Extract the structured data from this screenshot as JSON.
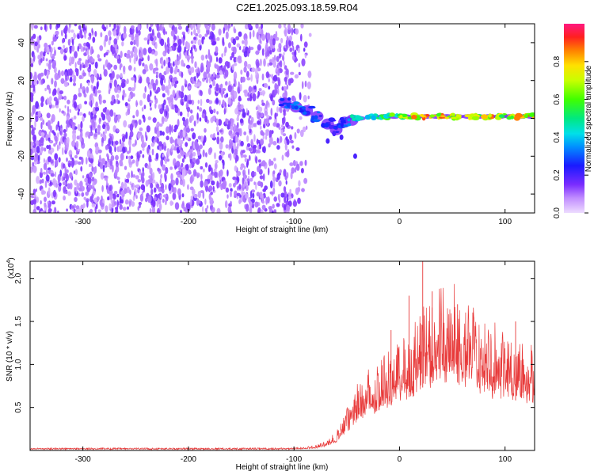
{
  "title": "C2E1.2025.093.18.59.R04",
  "chart_data": [
    {
      "type": "heatmap",
      "id": "spectrogram",
      "xlabel": "Height of straight line (km)",
      "ylabel": "Frequency (Hz)",
      "xlim": [
        -350,
        128
      ],
      "ylim": [
        -50,
        50
      ],
      "xticks": [
        -300,
        -200,
        -100,
        0,
        100
      ],
      "yticks": [
        -40,
        -20,
        0,
        20,
        40
      ],
      "colorbar": {
        "label": "Normalized spectral amplitude",
        "range": [
          0,
          1
        ],
        "ticks": [
          0.0,
          0.2,
          0.4,
          0.6,
          0.8
        ]
      },
      "noise_region_x": [
        -350,
        -90
      ],
      "signal_ridge": [
        {
          "x": -108,
          "y": 8,
          "amp": 0.3
        },
        {
          "x": -98,
          "y": 6,
          "amp": 0.35
        },
        {
          "x": -88,
          "y": 4,
          "amp": 0.3
        },
        {
          "x": -78,
          "y": 1,
          "amp": 0.3
        },
        {
          "x": -68,
          "y": -3,
          "amp": 0.25
        },
        {
          "x": -60,
          "y": -6,
          "amp": 0.25
        },
        {
          "x": -52,
          "y": -2,
          "amp": 0.3
        },
        {
          "x": -45,
          "y": -1,
          "amp": 0.45
        },
        {
          "x": -38,
          "y": 0,
          "amp": 0.45
        },
        {
          "x": -25,
          "y": 1,
          "amp": 0.5
        },
        {
          "x": -15,
          "y": 1,
          "amp": 0.55
        },
        {
          "x": -5,
          "y": 1,
          "amp": 0.6
        },
        {
          "x": 5,
          "y": 1,
          "amp": 0.7
        },
        {
          "x": 15,
          "y": 1,
          "amp": 0.8
        },
        {
          "x": 25,
          "y": 1,
          "amp": 0.85
        },
        {
          "x": 35,
          "y": 1,
          "amp": 0.8
        },
        {
          "x": 45,
          "y": 1,
          "amp": 0.85
        },
        {
          "x": 55,
          "y": 1,
          "amp": 0.8
        },
        {
          "x": 65,
          "y": 1,
          "amp": 0.75
        },
        {
          "x": 75,
          "y": 1,
          "amp": 0.75
        },
        {
          "x": 85,
          "y": 1,
          "amp": 0.8
        },
        {
          "x": 95,
          "y": 1,
          "amp": 0.75
        },
        {
          "x": 105,
          "y": 1,
          "amp": 0.8
        },
        {
          "x": 115,
          "y": 1,
          "amp": 0.8
        },
        {
          "x": 125,
          "y": 1,
          "amp": 0.85
        }
      ]
    },
    {
      "type": "line",
      "id": "snr",
      "xlabel": "Height of straight line (km)",
      "ylabel": "SNR (10 * v/v)",
      "scale_label": "(x10",
      "scale_exponent": "4",
      "xlim": [
        -350,
        128
      ],
      "ylim": [
        0,
        2.2
      ],
      "xticks": [
        -300,
        -200,
        -100,
        0,
        100
      ],
      "yticks": [
        0.5,
        1.0,
        1.5,
        2.0
      ],
      "ytick_labels": [
        "0.5",
        "1.0",
        "1.5",
        "2.0"
      ],
      "series": [
        {
          "name": "SNR",
          "color": "#e83a3a",
          "envelope": [
            {
              "x": -350,
              "y": 0.02
            },
            {
              "x": -100,
              "y": 0.02
            },
            {
              "x": -80,
              "y": 0.04
            },
            {
              "x": -70,
              "y": 0.08
            },
            {
              "x": -60,
              "y": 0.15
            },
            {
              "x": -50,
              "y": 0.35
            },
            {
              "x": -40,
              "y": 0.55
            },
            {
              "x": -30,
              "y": 0.7
            },
            {
              "x": -20,
              "y": 0.8
            },
            {
              "x": -10,
              "y": 0.88
            },
            {
              "x": 0,
              "y": 0.95
            },
            {
              "x": 10,
              "y": 1.05
            },
            {
              "x": 20,
              "y": 1.2
            },
            {
              "x": 30,
              "y": 1.3
            },
            {
              "x": 40,
              "y": 1.35
            },
            {
              "x": 50,
              "y": 1.35
            },
            {
              "x": 60,
              "y": 1.3
            },
            {
              "x": 70,
              "y": 1.22
            },
            {
              "x": 80,
              "y": 1.12
            },
            {
              "x": 90,
              "y": 1.05
            },
            {
              "x": 100,
              "y": 1.0
            },
            {
              "x": 110,
              "y": 0.97
            },
            {
              "x": 128,
              "y": 0.95
            }
          ],
          "peaks": [
            {
              "x": 22,
              "y": 2.2
            },
            {
              "x": 9,
              "y": 1.8
            },
            {
              "x": 31,
              "y": 1.85
            },
            {
              "x": -8,
              "y": 1.4
            },
            {
              "x": 55,
              "y": 1.7
            },
            {
              "x": 110,
              "y": 1.5
            }
          ]
        }
      ]
    }
  ]
}
